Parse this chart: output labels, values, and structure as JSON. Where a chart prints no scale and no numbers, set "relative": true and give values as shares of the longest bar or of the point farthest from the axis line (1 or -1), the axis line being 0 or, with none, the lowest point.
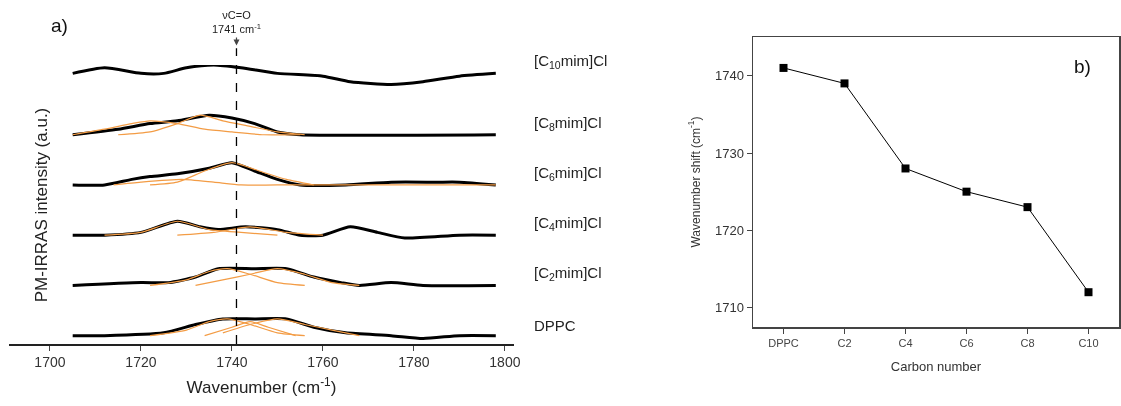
{
  "chart_data": [
    {
      "type": "line",
      "title": "a)",
      "xlabel": "Wavenumber (cm$^{-1}$)",
      "ylabel": "PM-IRRAS intensity (a.u.)",
      "relative": true,
      "xlim": [
        1691,
        1802
      ],
      "xticks": [
        1700,
        1720,
        1740,
        1760,
        1780,
        1800
      ],
      "tick_labels": "x",
      "grid": false,
      "legend": false,
      "ref_lines": [
        {
          "axis": "x",
          "value": 1741,
          "label": "νC=O\n1741 cm$^{-1}$",
          "line_style": "dashed",
          "color": "#000000"
        }
      ],
      "series": [
        {
          "name": "[C$_{10}$mim]Cl",
          "color": "#000000",
          "x": [
            1705,
            1712,
            1720,
            1725,
            1730,
            1736,
            1742,
            1750,
            1760,
            1766,
            1775,
            1782,
            1790,
            1798
          ],
          "values": [
            0.97,
            0.99,
            0.97,
            0.97,
            0.99,
            1,
            0.99,
            0.97,
            0.96,
            0.94,
            0.93,
            0.94,
            0.96,
            0.97
          ]
        },
        {
          "name": "[C$_{8}$mim]Cl",
          "color": "#000000",
          "x": [
            1705,
            1715,
            1722,
            1728,
            1735,
            1740,
            1745,
            1750,
            1755,
            1798
          ],
          "values": [
            0.75,
            0.77,
            0.79,
            0.8,
            0.82,
            0.81,
            0.79,
            0.76,
            0.75,
            0.75
          ]
        },
        {
          "name": "[C$_{6}$mim]Cl",
          "color": "#000000",
          "x": [
            1705,
            1712,
            1718,
            1722,
            1728,
            1735,
            1740,
            1745,
            1750,
            1755,
            1765,
            1775,
            1785,
            1790,
            1798
          ],
          "values": [
            0.57,
            0.57,
            0.59,
            0.6,
            0.61,
            0.63,
            0.65,
            0.62,
            0.59,
            0.57,
            0.57,
            0.58,
            0.58,
            0.58,
            0.57
          ]
        },
        {
          "name": "[C$_{4}$mim]Cl",
          "color": "#000000",
          "x": [
            1705,
            1712,
            1720,
            1728,
            1733,
            1737,
            1743,
            1750,
            1755,
            1760,
            1766,
            1772,
            1778,
            1790,
            1798
          ],
          "values": [
            0.39,
            0.39,
            0.4,
            0.44,
            0.42,
            0.41,
            0.42,
            0.41,
            0.39,
            0.39,
            0.42,
            0.4,
            0.38,
            0.39,
            0.39
          ]
        },
        {
          "name": "[C$_{2}$mim]Cl",
          "color": "#000000",
          "x": [
            1705,
            1720,
            1726,
            1732,
            1737,
            1745,
            1752,
            1758,
            1764,
            1768,
            1775,
            1782,
            1798
          ],
          "values": [
            0.21,
            0.22,
            0.22,
            0.24,
            0.27,
            0.27,
            0.27,
            0.24,
            0.22,
            0.21,
            0.22,
            0.21,
            0.21
          ]
        },
        {
          "name": "DPPC",
          "color": "#000000",
          "x": [
            1705,
            1712,
            1725,
            1732,
            1738,
            1745,
            1752,
            1758,
            1765,
            1775,
            1782,
            1790,
            1798
          ],
          "values": [
            0.03,
            0.03,
            0.04,
            0.07,
            0.09,
            0.09,
            0.09,
            0.06,
            0.04,
            0.03,
            0.02,
            0.03,
            0.03
          ]
        },
        {
          "color": "#f39c45",
          "x": [
            1705,
            1712,
            1718,
            1722,
            1728,
            1734,
            1740,
            1747,
            1755
          ],
          "values": [
            0.75,
            0.77,
            0.79,
            0.8,
            0.79,
            0.77,
            0.76,
            0.75,
            0.75
          ]
        },
        {
          "color": "#f39c45",
          "x": [
            1715,
            1722,
            1728,
            1733,
            1738,
            1744,
            1750,
            1756
          ],
          "values": [
            0.75,
            0.76,
            0.79,
            0.82,
            0.8,
            0.78,
            0.76,
            0.75
          ]
        },
        {
          "color": "#f39c45",
          "x": [
            1714,
            1720,
            1729,
            1736,
            1742,
            1750,
            1798
          ],
          "values": [
            0.57,
            0.58,
            0.59,
            0.58,
            0.57,
            0.57,
            0.57
          ]
        },
        {
          "color": "#f39c45",
          "x": [
            1722,
            1728,
            1734,
            1740,
            1746,
            1752,
            1758
          ],
          "values": [
            0.57,
            0.58,
            0.62,
            0.65,
            0.62,
            0.59,
            0.57
          ]
        },
        {
          "color": "#f39c45",
          "x": [
            1712,
            1720,
            1728,
            1735,
            1742,
            1750
          ],
          "values": [
            0.39,
            0.4,
            0.44,
            0.41,
            0.4,
            0.39
          ]
        },
        {
          "color": "#f39c45",
          "x": [
            1728,
            1736,
            1744,
            1752,
            1760
          ],
          "values": [
            0.39,
            0.4,
            0.42,
            0.4,
            0.39
          ]
        },
        {
          "color": "#f39c45",
          "x": [
            1722,
            1730,
            1735,
            1739,
            1744,
            1750,
            1756
          ],
          "values": [
            0.21,
            0.23,
            0.26,
            0.27,
            0.25,
            0.22,
            0.21
          ]
        },
        {
          "color": "#f39c45",
          "x": [
            1732,
            1738,
            1744,
            1750,
            1756,
            1762,
            1768
          ],
          "values": [
            0.21,
            0.23,
            0.25,
            0.27,
            0.25,
            0.22,
            0.21
          ]
        },
        {
          "color": "#f39c45",
          "x": [
            1722,
            1730,
            1735,
            1739,
            1744,
            1750,
            1756
          ],
          "values": [
            0.03,
            0.05,
            0.08,
            0.09,
            0.07,
            0.04,
            0.03
          ]
        },
        {
          "color": "#f39c45",
          "x": [
            1734,
            1740,
            1744,
            1748,
            1754
          ],
          "values": [
            0.03,
            0.06,
            0.08,
            0.06,
            0.03
          ]
        },
        {
          "color": "#f39c45",
          "x": [
            1738,
            1744,
            1750,
            1756,
            1762,
            1768
          ],
          "values": [
            0.04,
            0.07,
            0.09,
            0.07,
            0.05,
            0.03
          ]
        }
      ]
    },
    {
      "type": "line",
      "title": "b)",
      "xlabel": "Carbon number",
      "ylabel": "Wavenumber shift (cm$^{-1}$)",
      "categories": [
        "DPPC",
        "C2",
        "C4",
        "C6",
        "C8",
        "C10"
      ],
      "values": [
        1741,
        1739,
        1728,
        1725,
        1723,
        1712
      ],
      "color": "#000000",
      "marker": "square",
      "ylim": [
        1707.5,
        1745
      ],
      "yticks": [
        1710,
        1720,
        1730,
        1740
      ],
      "grid": false,
      "legend": false
    }
  ]
}
